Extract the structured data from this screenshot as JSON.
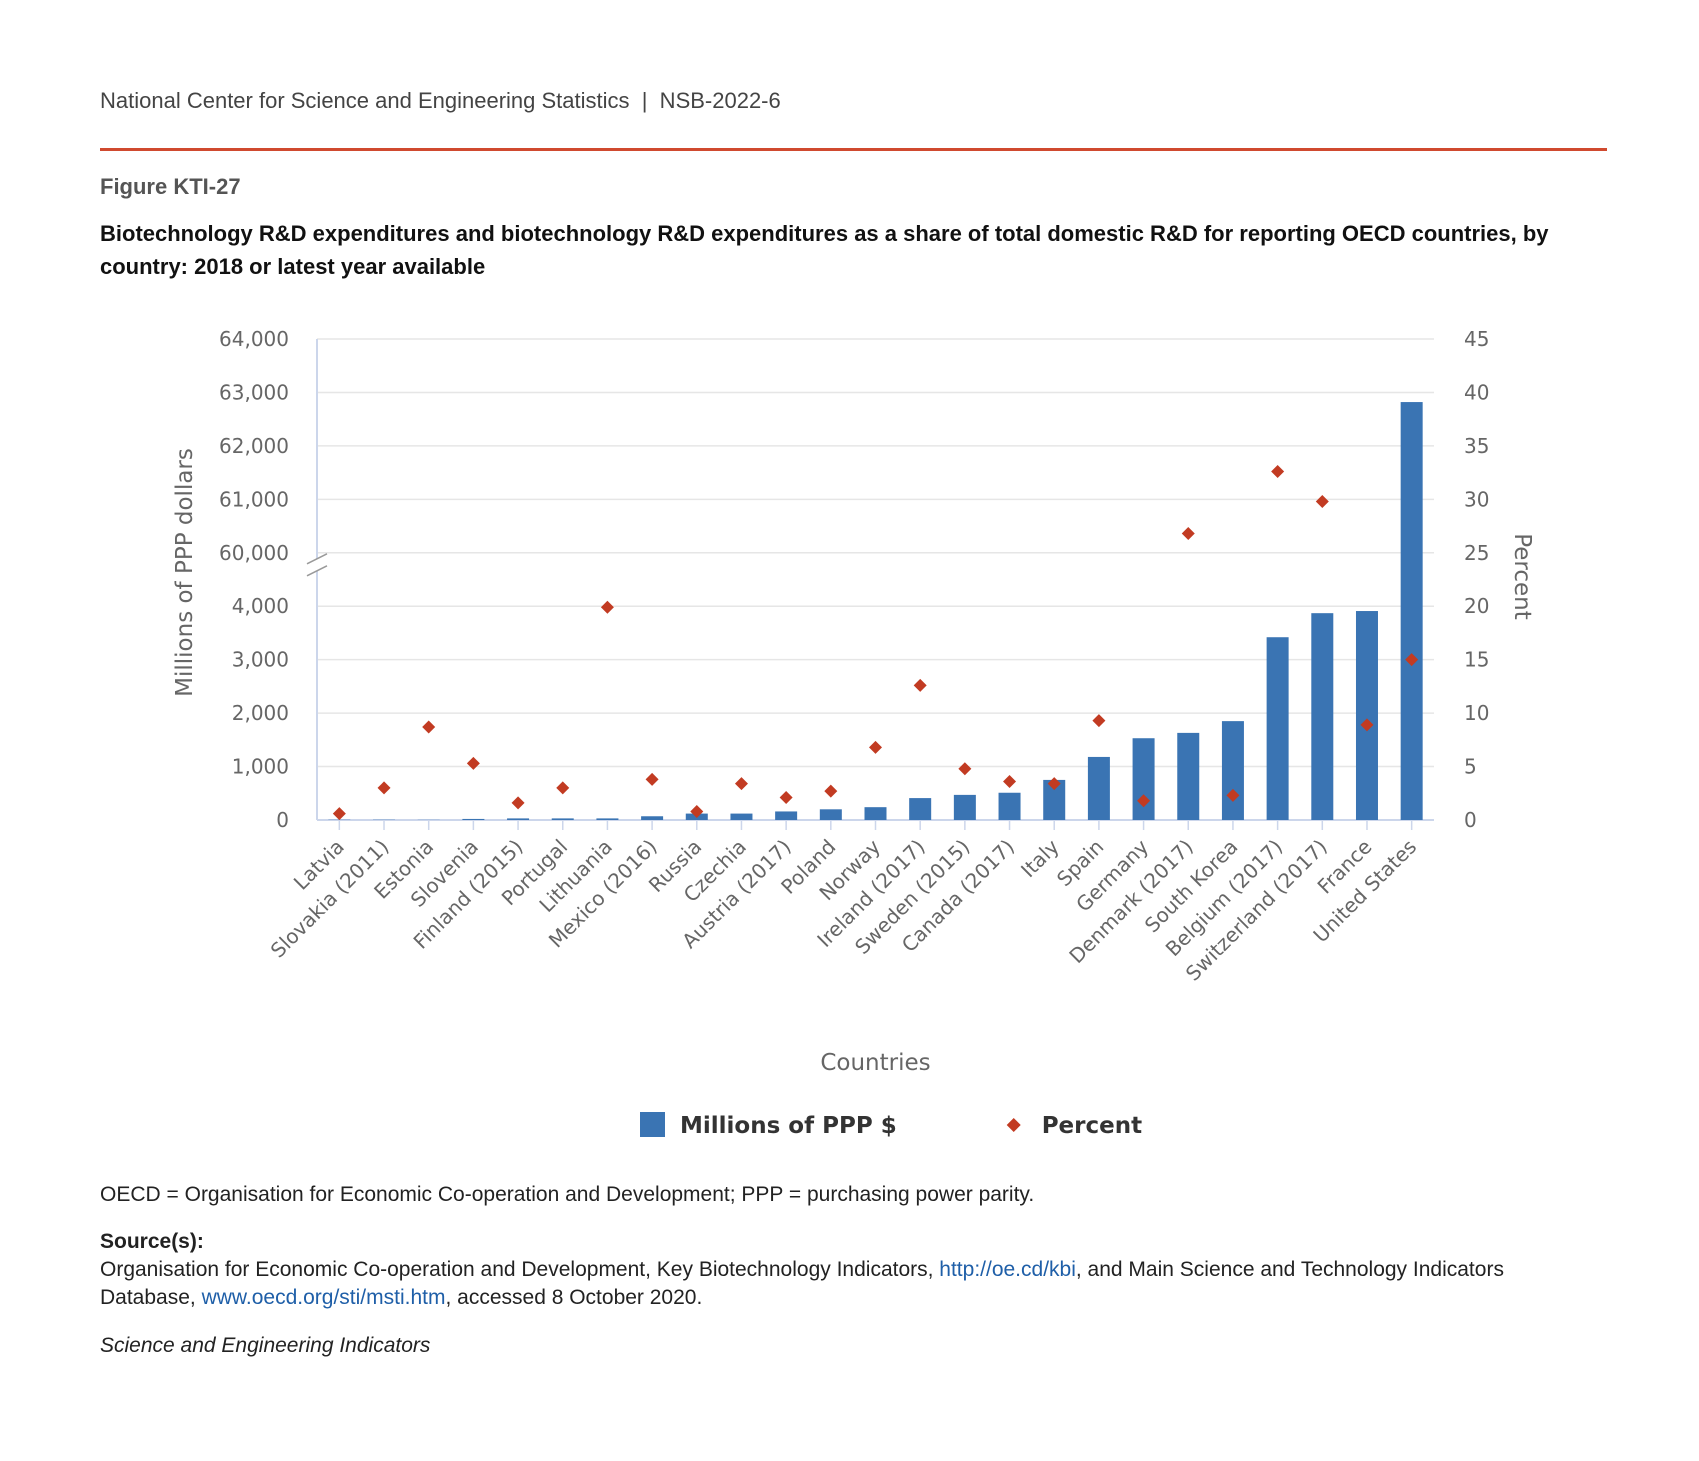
{
  "header": "National Center for Science and Engineering Statistics  |  NSB-2022-6",
  "figure_label": "Figure KTI-27",
  "chart_data": {
    "type": "bar",
    "title": "Biotechnology R&D expenditures and biotechnology R&D expenditures as a share of total domestic R&D for reporting OECD countries, by country: 2018 or latest year available",
    "x_label": "Countries",
    "y_label": "Millions of PPP dollars",
    "y2_label": "Percent",
    "categories": [
      "Latvia",
      "Slovakia (2011)",
      "Estonia",
      "Slovenia",
      "Finland (2015)",
      "Portugal",
      "Lithuania",
      "Mexico (2016)",
      "Russia",
      "Czechia",
      "Austria (2017)",
      "Poland",
      "Norway",
      "Ireland (2017)",
      "Sweden (2015)",
      "Canada (2017)",
      "Italy",
      "Spain",
      "Germany",
      "Denmark (2017)",
      "South Korea",
      "Belgium (2017)",
      "Switzerland (2017)",
      "France",
      "United States"
    ],
    "series": [
      {
        "name": "Millions of PPP $",
        "type": "bar",
        "color": "#3a74b3",
        "values": [
          5,
          5,
          3,
          20,
          30,
          30,
          30,
          70,
          120,
          120,
          160,
          200,
          240,
          410,
          470,
          510,
          750,
          1180,
          1530,
          1630,
          1850,
          3420,
          3870,
          3910,
          62820
        ]
      },
      {
        "name": "Percent",
        "type": "scatter",
        "axis": "y2",
        "color": "#c23b22",
        "values": [
          0.6,
          3.0,
          8.7,
          5.3,
          1.6,
          3.0,
          19.9,
          3.8,
          0.8,
          3.4,
          2.1,
          2.7,
          6.8,
          12.6,
          4.8,
          3.6,
          3.4,
          9.3,
          1.8,
          26.8,
          2.3,
          32.6,
          29.8,
          8.9,
          15.0
        ]
      }
    ],
    "ylim": [
      0,
      64000
    ],
    "yticks": [
      0,
      {
        "value": 1000,
        "label": "1,000"
      },
      {
        "value": 2000,
        "label": "2,000"
      },
      {
        "value": 3000,
        "label": "3,000"
      },
      {
        "value": 4000,
        "label": "4,000"
      },
      {
        "value": 60000,
        "label": "60,000"
      },
      {
        "value": 61000,
        "label": "61,000"
      },
      {
        "value": 62000,
        "label": "62,000"
      },
      {
        "value": 63000,
        "label": "63,000"
      },
      {
        "value": 64000,
        "label": "64,000"
      }
    ],
    "y_break": true,
    "y2lim": [
      0,
      45
    ],
    "y2ticks": [
      0,
      5,
      10,
      15,
      20,
      25,
      30,
      35,
      40,
      45
    ],
    "grid": true,
    "legend": "bottom"
  },
  "note": "OECD = Organisation for Economic Co-operation and Development; PPP = purchasing power parity.",
  "source": {
    "label": "Source(s):",
    "parts": [
      "Organisation for Economic Co-operation and Development, Key Biotechnology Indicators, ",
      "http://oe.cd/kbi",
      ", and Main Science and Technology Indicators Database, ",
      "www.oecd.org/sti/msti.htm",
      ", accessed 8 October 2020."
    ]
  },
  "footer": "Science and Engineering Indicators"
}
